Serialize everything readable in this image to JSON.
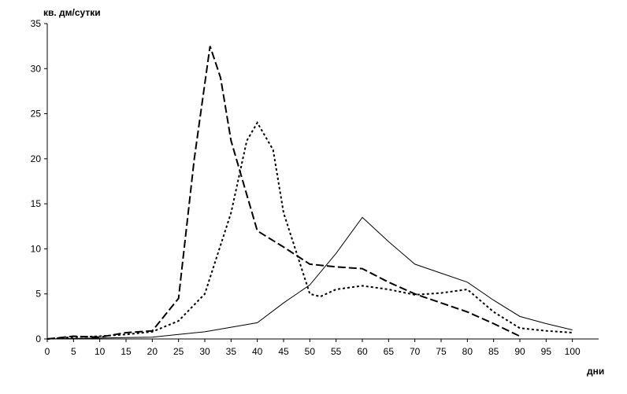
{
  "chart_data": {
    "type": "line",
    "y_label": "кв. дм/сутки",
    "x_label": "дни",
    "xlim": [
      0,
      105
    ],
    "xticks": [
      0,
      5,
      10,
      15,
      20,
      25,
      30,
      35,
      40,
      45,
      50,
      55,
      60,
      65,
      70,
      75,
      80,
      85,
      90,
      95,
      100
    ],
    "ylim": [
      0,
      35
    ],
    "yticks": [
      0,
      5,
      10,
      15,
      20,
      25,
      30,
      35
    ],
    "grid": false,
    "series": [
      {
        "color": "#000000",
        "style": "solid",
        "x": [
          0,
          5,
          10,
          15,
          20,
          25,
          30,
          35,
          40,
          45,
          50,
          55,
          60,
          65,
          70,
          75,
          80,
          85,
          90,
          95,
          100
        ],
        "values": [
          0,
          0.05,
          0.1,
          0.15,
          0.2,
          0.5,
          0.8,
          1.3,
          1.8,
          4,
          6,
          9.5,
          13.5,
          10.8,
          8.3,
          7.3,
          6.3,
          4.3,
          2.5,
          1.7,
          1
        ]
      },
      {
        "color": "#000000",
        "style": "dashed",
        "x": [
          0,
          5,
          10,
          15,
          20,
          25,
          28,
          31,
          33,
          35,
          40,
          45,
          50,
          55,
          60,
          65,
          70,
          75,
          80,
          85,
          90
        ],
        "values": [
          0,
          0.3,
          0.2,
          0.7,
          0.9,
          4.5,
          20,
          32.5,
          29,
          22,
          12,
          10.2,
          8.3,
          8,
          7.8,
          6.3,
          5,
          4,
          3,
          1.7,
          0.3
        ]
      },
      {
        "color": "#000000",
        "style": "dotted",
        "x": [
          0,
          5,
          10,
          15,
          20,
          25,
          30,
          35,
          38,
          40,
          43,
          45,
          50,
          52,
          55,
          60,
          65,
          70,
          75,
          80,
          85,
          90,
          95,
          100
        ],
        "values": [
          0,
          0.2,
          0.3,
          0.5,
          0.8,
          2,
          5,
          14,
          22,
          24,
          21,
          14,
          5,
          4.7,
          5.5,
          5.9,
          5.5,
          4.9,
          5.1,
          5.5,
          3,
          1.2,
          0.9,
          0.7
        ]
      }
    ]
  }
}
